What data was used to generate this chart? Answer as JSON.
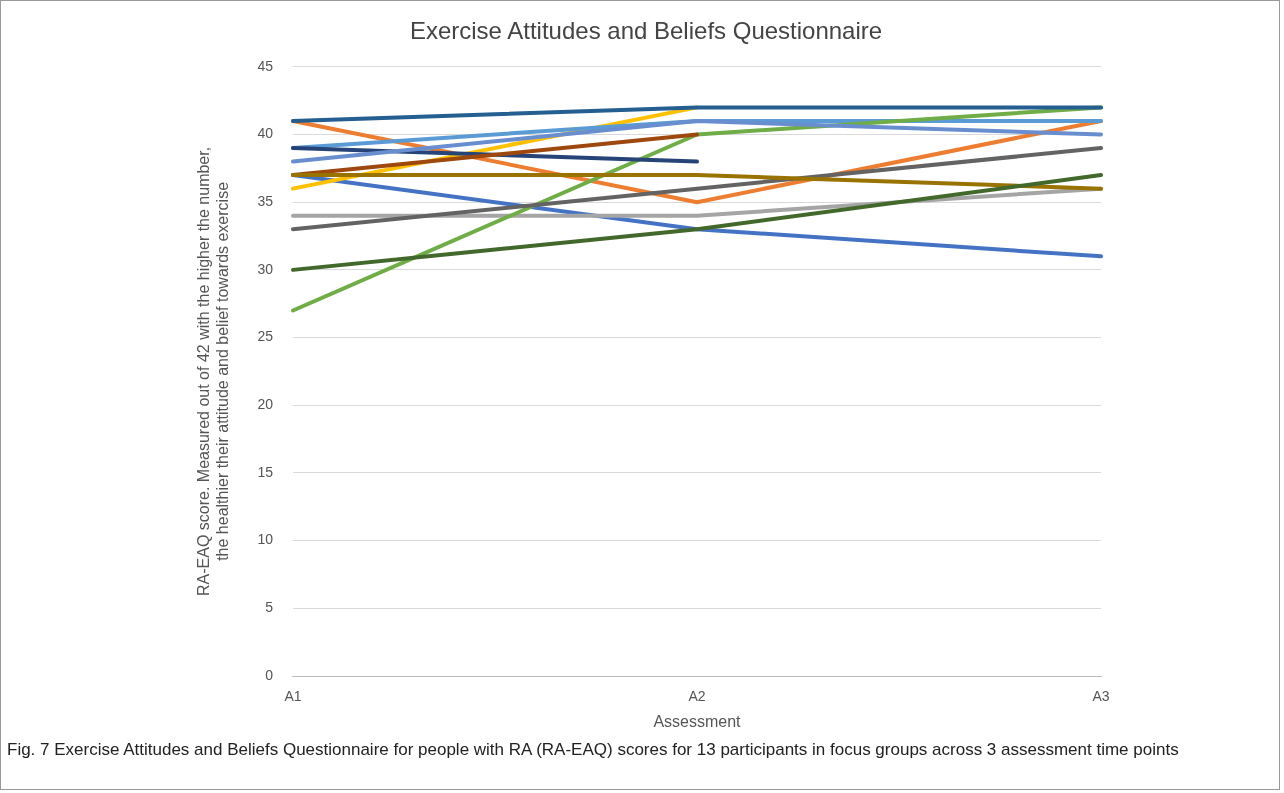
{
  "chart_data": {
    "type": "line",
    "title": "Exercise Attitudes and Beliefs Questionnaire",
    "xlabel": "Assessment",
    "ylabel": "RA-EAQ score. Measured out of 42 with the higher the number, the healthier their attitude and belief towards exercise",
    "categories": [
      "A1",
      "A2",
      "A3"
    ],
    "series": [
      {
        "color": "#4472c4",
        "values": [
          37,
          33,
          31
        ]
      },
      {
        "color": "#ed7d31",
        "values": [
          41,
          35,
          41
        ]
      },
      {
        "color": "#a5a5a5",
        "values": [
          34,
          34,
          36
        ]
      },
      {
        "color": "#ffc000",
        "values": [
          36,
          42,
          null
        ]
      },
      {
        "color": "#5b9bd5",
        "values": [
          39,
          41,
          41
        ]
      },
      {
        "color": "#70ad47",
        "values": [
          27,
          40,
          42
        ]
      },
      {
        "color": "#264478",
        "values": [
          39,
          38,
          null
        ]
      },
      {
        "color": "#9e480e",
        "values": [
          37,
          40,
          null
        ]
      },
      {
        "color": "#636363",
        "values": [
          33,
          36,
          39
        ]
      },
      {
        "color": "#997300",
        "values": [
          37,
          37,
          36
        ]
      },
      {
        "color": "#255e91",
        "values": [
          41,
          42,
          42
        ]
      },
      {
        "color": "#43682b",
        "values": [
          30,
          33,
          37
        ]
      },
      {
        "color": "#698ed0",
        "values": [
          38,
          41,
          40
        ]
      }
    ],
    "ylim": [
      0,
      45
    ],
    "yticks": [
      0,
      5,
      10,
      15,
      20,
      25,
      30,
      35,
      40,
      45
    ],
    "grid": "y",
    "legend": false,
    "marker": "none",
    "line_style": "solid",
    "annotations": [
      "Fig. 7 Exercise Attitudes and Beliefs Questionnaire for people with RA (RA-EAQ) scores for 13 participants in focus groups across 3 assessment time points"
    ]
  }
}
